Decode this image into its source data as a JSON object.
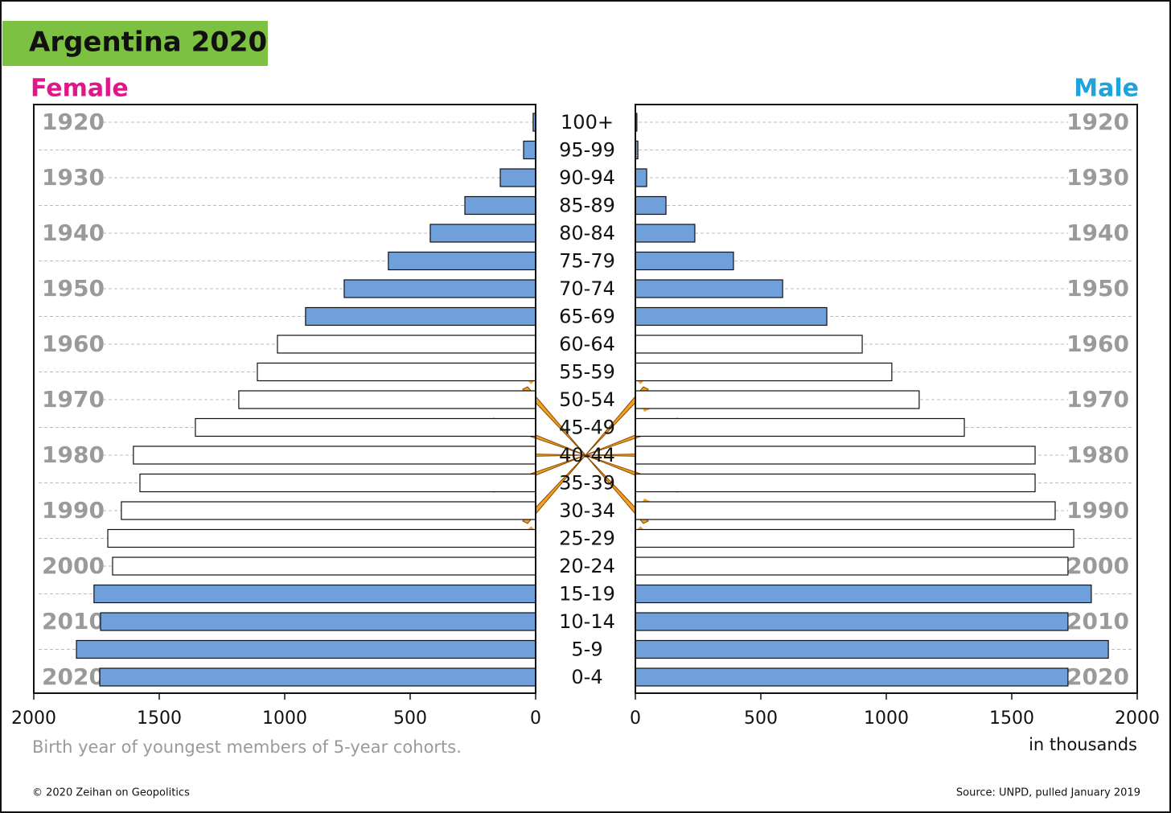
{
  "chart_data": {
    "type": "pyramid",
    "title": "Argentina 2020",
    "note": "Birth year of youngest members of 5-year cohorts.",
    "x_label": "in thousands",
    "copyright": "© 2020 Zeihan on Geopolitics",
    "source": "Source: UNPD, pulled January 2019",
    "categories": [
      "100+",
      "95-99",
      "90-94",
      "85-89",
      "80-84",
      "75-79",
      "70-74",
      "65-69",
      "60-64",
      "55-59",
      "50-54",
      "45-49",
      "40-44",
      "35-39",
      "30-34",
      "25-29",
      "20-24",
      "15-19",
      "10-14",
      "5-9",
      "0-4"
    ],
    "birth_years": [
      1920,
      null,
      1930,
      null,
      1940,
      null,
      1950,
      null,
      1960,
      null,
      1970,
      null,
      1980,
      null,
      1990,
      null,
      2000,
      null,
      2010,
      null,
      2020
    ],
    "colors": [
      "#6fa0dc",
      "#6fa0dc",
      "#6fa0dc",
      "#6fa0dc",
      "#6fa0dc",
      "#6fa0dc",
      "#6fa0dc",
      "#6fa0dc",
      "#ffffff",
      "#ffffff",
      "#ffffff",
      "#ffffff",
      "#ffffff",
      "#ffffff",
      "#ffffff",
      "#ffffff",
      "#ffffff",
      "#6fa0dc",
      "#6fa0dc",
      "#6fa0dc",
      "#6fa0dc"
    ],
    "series": [
      {
        "name": "Female",
        "label_color": "#e0168b",
        "side": "left",
        "values": [
          10,
          48,
          141,
          282,
          420,
          587,
          763,
          917,
          1029,
          1109,
          1183,
          1356,
          1603,
          1577,
          1651,
          1705,
          1686,
          1760,
          1734,
          1830,
          1737
        ]
      },
      {
        "name": "Male",
        "label_color": "#1fa3dc",
        "side": "right",
        "values": [
          6,
          10,
          45,
          122,
          237,
          391,
          587,
          763,
          904,
          1022,
          1131,
          1311,
          1593,
          1593,
          1673,
          1747,
          1724,
          1817,
          1724,
          1885,
          1724
        ]
      }
    ],
    "xlim": [
      0,
      2000
    ],
    "xticks": [
      0,
      500,
      1000,
      1500,
      2000
    ]
  }
}
